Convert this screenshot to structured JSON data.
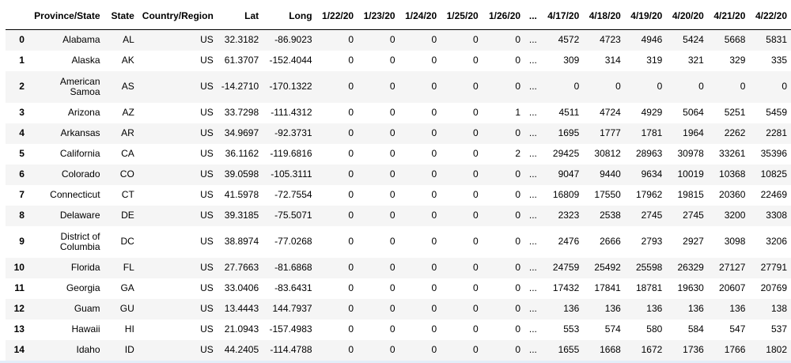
{
  "table": {
    "columns": [
      "",
      "Province/State",
      "State",
      "Country/Region",
      "Lat",
      "Long",
      "1/22/20",
      "1/23/20",
      "1/24/20",
      "1/25/20",
      "1/26/20",
      "...",
      "4/17/20",
      "4/18/20",
      "4/19/20",
      "4/20/20",
      "4/21/20",
      "4/22/20"
    ],
    "rows": [
      [
        "0",
        "Alabama",
        "AL",
        "US",
        "32.3182",
        "-86.9023",
        "0",
        "0",
        "0",
        "0",
        "0",
        "...",
        "4572",
        "4723",
        "4946",
        "5424",
        "5668",
        "5831"
      ],
      [
        "1",
        "Alaska",
        "AK",
        "US",
        "61.3707",
        "-152.4044",
        "0",
        "0",
        "0",
        "0",
        "0",
        "...",
        "309",
        "314",
        "319",
        "321",
        "329",
        "335"
      ],
      [
        "2",
        "American Samoa",
        "AS",
        "US",
        "-14.2710",
        "-170.1322",
        "0",
        "0",
        "0",
        "0",
        "0",
        "...",
        "0",
        "0",
        "0",
        "0",
        "0",
        "0"
      ],
      [
        "3",
        "Arizona",
        "AZ",
        "US",
        "33.7298",
        "-111.4312",
        "0",
        "0",
        "0",
        "0",
        "1",
        "...",
        "4511",
        "4724",
        "4929",
        "5064",
        "5251",
        "5459"
      ],
      [
        "4",
        "Arkansas",
        "AR",
        "US",
        "34.9697",
        "-92.3731",
        "0",
        "0",
        "0",
        "0",
        "0",
        "...",
        "1695",
        "1777",
        "1781",
        "1964",
        "2262",
        "2281"
      ],
      [
        "5",
        "California",
        "CA",
        "US",
        "36.1162",
        "-119.6816",
        "0",
        "0",
        "0",
        "0",
        "2",
        "...",
        "29425",
        "30812",
        "28963",
        "30978",
        "33261",
        "35396"
      ],
      [
        "6",
        "Colorado",
        "CO",
        "US",
        "39.0598",
        "-105.3111",
        "0",
        "0",
        "0",
        "0",
        "0",
        "...",
        "9047",
        "9440",
        "9634",
        "10019",
        "10368",
        "10825"
      ],
      [
        "7",
        "Connecticut",
        "CT",
        "US",
        "41.5978",
        "-72.7554",
        "0",
        "0",
        "0",
        "0",
        "0",
        "...",
        "16809",
        "17550",
        "17962",
        "19815",
        "20360",
        "22469"
      ],
      [
        "8",
        "Delaware",
        "DE",
        "US",
        "39.3185",
        "-75.5071",
        "0",
        "0",
        "0",
        "0",
        "0",
        "...",
        "2323",
        "2538",
        "2745",
        "2745",
        "3200",
        "3308"
      ],
      [
        "9",
        "District of Columbia",
        "DC",
        "US",
        "38.8974",
        "-77.0268",
        "0",
        "0",
        "0",
        "0",
        "0",
        "...",
        "2476",
        "2666",
        "2793",
        "2927",
        "3098",
        "3206"
      ],
      [
        "10",
        "Florida",
        "FL",
        "US",
        "27.7663",
        "-81.6868",
        "0",
        "0",
        "0",
        "0",
        "0",
        "...",
        "24759",
        "25492",
        "25598",
        "26329",
        "27127",
        "27791"
      ],
      [
        "11",
        "Georgia",
        "GA",
        "US",
        "33.0406",
        "-83.6431",
        "0",
        "0",
        "0",
        "0",
        "0",
        "...",
        "17432",
        "17841",
        "18781",
        "19630",
        "20607",
        "20769"
      ],
      [
        "12",
        "Guam",
        "GU",
        "US",
        "13.4443",
        "144.7937",
        "0",
        "0",
        "0",
        "0",
        "0",
        "...",
        "136",
        "136",
        "136",
        "136",
        "136",
        "138"
      ],
      [
        "13",
        "Hawaii",
        "HI",
        "US",
        "21.0943",
        "-157.4983",
        "0",
        "0",
        "0",
        "0",
        "0",
        "...",
        "553",
        "574",
        "580",
        "584",
        "547",
        "537"
      ],
      [
        "14",
        "Idaho",
        "ID",
        "US",
        "44.2405",
        "-114.4788",
        "0",
        "0",
        "0",
        "0",
        "0",
        "...",
        "1655",
        "1668",
        "1672",
        "1736",
        "1766",
        "1802"
      ]
    ]
  }
}
